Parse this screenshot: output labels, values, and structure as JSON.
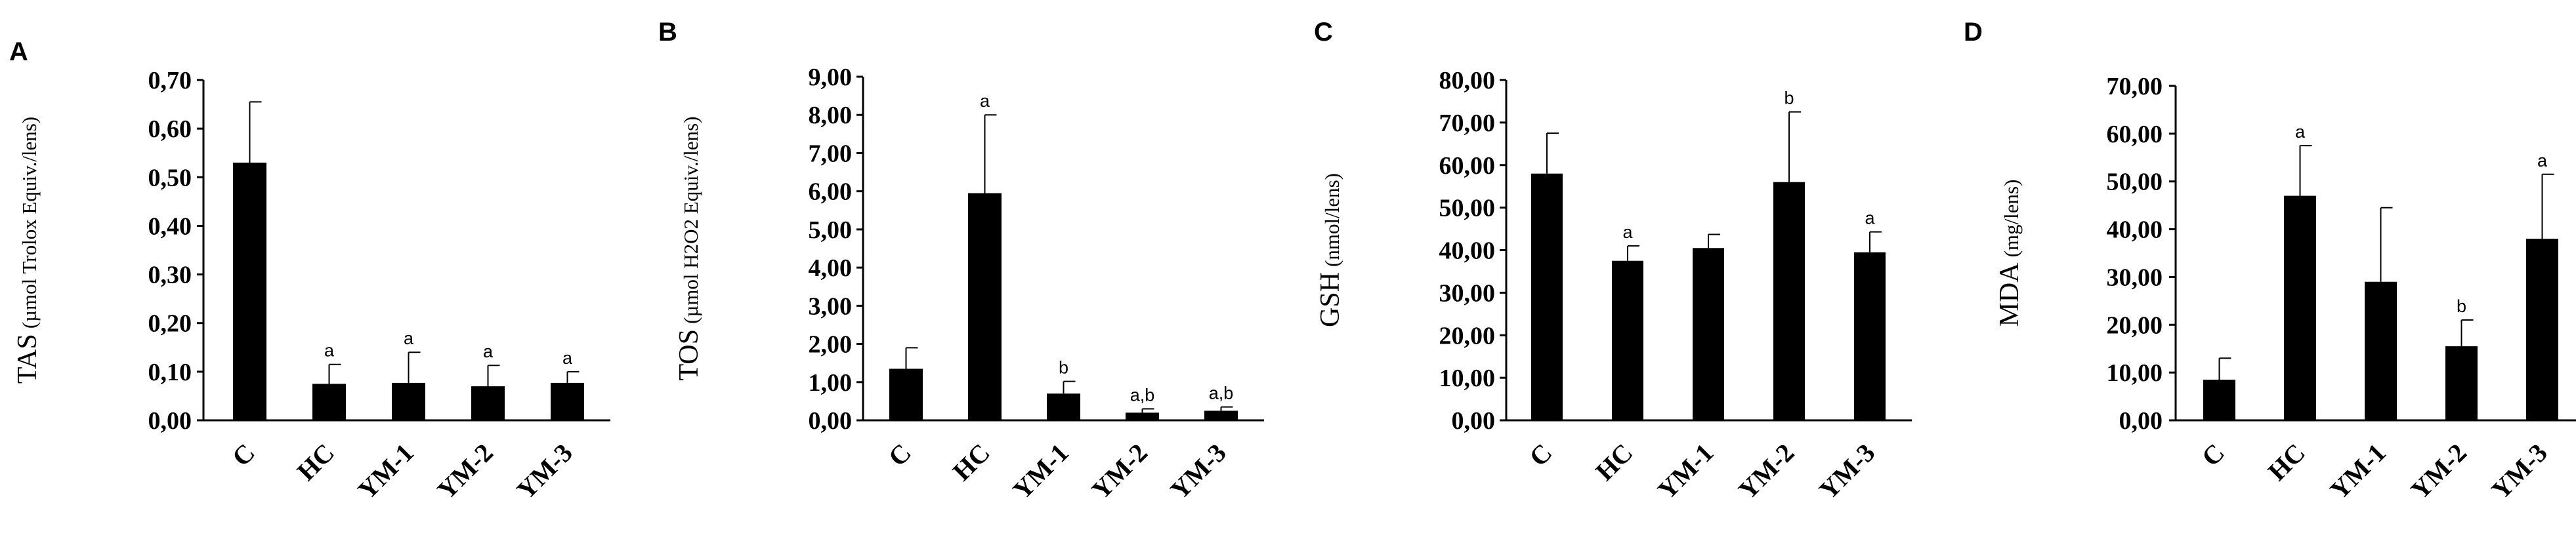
{
  "chart_data": [
    {
      "panel": "A",
      "type": "bar",
      "categories": [
        "C",
        "HC",
        "YM-1",
        "YM-2",
        "YM-3"
      ],
      "values": [
        0.53,
        0.075,
        0.077,
        0.07,
        0.077
      ],
      "errors": [
        0.125,
        0.04,
        0.063,
        0.043,
        0.023
      ],
      "significance": [
        "",
        "a",
        "a",
        "a",
        "a"
      ],
      "ylabel": "TAS",
      "ylabel_unit": "(µmol Trolox Equiv./lens)",
      "ylim": [
        0,
        0.7
      ],
      "yticks": [
        "0,00",
        "0,10",
        "0,20",
        "0,30",
        "0,40",
        "0,50",
        "0,60",
        "0,70"
      ],
      "bar_color": "#000000"
    },
    {
      "panel": "B",
      "type": "bar",
      "categories": [
        "C",
        "HC",
        "YM-1",
        "YM-2",
        "YM-3"
      ],
      "values": [
        1.35,
        5.95,
        0.7,
        0.2,
        0.25
      ],
      "errors": [
        0.55,
        2.05,
        0.32,
        0.1,
        0.1
      ],
      "significance": [
        "",
        "a",
        "b",
        "a,b",
        "a,b"
      ],
      "ylabel": "TOS",
      "ylabel_unit": "(µmol H2O2 Equiv./lens)",
      "ylim": [
        0,
        9
      ],
      "yticks": [
        "0,00",
        "1,00",
        "2,00",
        "3,00",
        "4,00",
        "5,00",
        "6,00",
        "7,00",
        "8,00",
        "9,00"
      ],
      "bar_color": "#000000"
    },
    {
      "panel": "C",
      "type": "bar",
      "categories": [
        "C",
        "HC",
        "YM-1",
        "YM-2",
        "YM-3"
      ],
      "values": [
        58,
        37.5,
        40.5,
        56,
        39.5
      ],
      "errors": [
        9.5,
        3.5,
        3.2,
        16.5,
        4.8
      ],
      "significance": [
        "",
        "a",
        "",
        "b",
        "a"
      ],
      "ylabel": "GSH",
      "ylabel_unit": "(nmol/lens)",
      "ylim": [
        0,
        80
      ],
      "yticks": [
        "0,00",
        "10,00",
        "20,00",
        "30,00",
        "40,00",
        "50,00",
        "60,00",
        "70,00",
        "80,00"
      ],
      "bar_color": "#000000"
    },
    {
      "panel": "D",
      "type": "bar",
      "categories": [
        "C",
        "HC",
        "YM-1",
        "YM-2",
        "YM-3"
      ],
      "values": [
        8.5,
        47,
        29,
        15.5,
        38
      ],
      "errors": [
        4.5,
        10.5,
        15.5,
        5.5,
        13.5
      ],
      "significance": [
        "",
        "a",
        "",
        "b",
        "a"
      ],
      "ylabel": "MDA",
      "ylabel_unit": "(mg/lens)",
      "ylim": [
        0,
        70
      ],
      "yticks": [
        "0,00",
        "10,00",
        "20,00",
        "30,00",
        "40,00",
        "50,00",
        "60,00",
        "70,00"
      ],
      "bar_color": "#000000"
    }
  ]
}
